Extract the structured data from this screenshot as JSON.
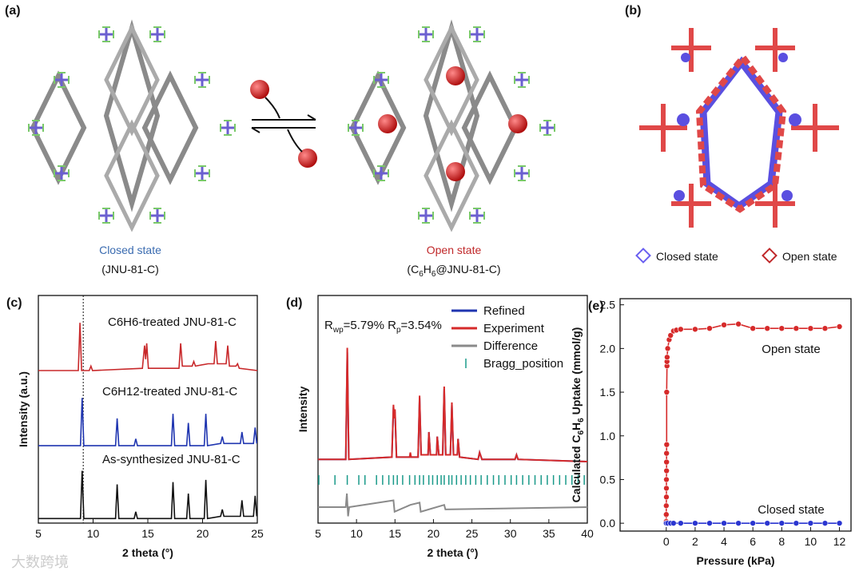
{
  "panel_a": {
    "label": "(a)",
    "closed_state": {
      "name": "Closed state",
      "formula": "(JNU-81-C)"
    },
    "open_state": {
      "name": "Open state",
      "formula_parts": [
        "(C",
        "6",
        "H",
        "6",
        "@JNU-81-C)"
      ]
    }
  },
  "panel_b": {
    "label": "(b)",
    "legend": [
      {
        "name": "Closed state",
        "color": "#6a5ff0"
      },
      {
        "name": "Open state",
        "color": "#c0282a"
      }
    ]
  },
  "chart_data": [
    {
      "panel_label": "(c)",
      "type": "line",
      "xlabel": "2 theta (°)",
      "ylabel": "Intensity (a.u.)",
      "xlim": [
        5,
        25
      ],
      "xticks": [
        5,
        10,
        15,
        20,
        25
      ],
      "ylim": [
        0,
        10
      ],
      "reference_line": 9.1,
      "series": [
        {
          "name": "C6H6-treated JNU-81-C",
          "color": "#c8282a",
          "x": [
            5,
            8.65,
            8.8,
            8.95,
            9.65,
            9.8,
            9.95,
            14.5,
            14.7,
            14.8,
            14.9,
            15.05,
            17.85,
            18.0,
            18.15,
            19.05,
            19.2,
            19.35,
            20.5,
            21.05,
            21.2,
            21.35,
            22.15,
            22.3,
            22.45,
            23.05,
            23.2,
            23.35,
            25
          ],
          "values": [
            6.7,
            6.7,
            8.8,
            6.7,
            6.7,
            6.9,
            6.7,
            6.8,
            7.8,
            7.2,
            7.9,
            6.8,
            6.8,
            7.9,
            6.9,
            6.9,
            7.1,
            6.9,
            7.0,
            7.0,
            8.0,
            7.0,
            7.0,
            7.8,
            6.9,
            6.9,
            7.0,
            6.8,
            6.7
          ]
        },
        {
          "name": "C6H12-treated JNU-81-C",
          "color": "#1f35b0",
          "x": [
            5,
            8.85,
            9.0,
            9.15,
            12.05,
            12.2,
            12.35,
            13.75,
            13.9,
            14.05,
            17.15,
            17.3,
            17.45,
            18.55,
            18.7,
            18.85,
            20.15,
            20.3,
            20.45,
            21.65,
            21.8,
            21.95,
            23.45,
            23.6,
            23.75,
            24.65,
            24.8,
            24.95
          ],
          "values": [
            3.4,
            3.4,
            5.5,
            3.4,
            3.4,
            4.6,
            3.4,
            3.4,
            3.7,
            3.4,
            3.4,
            4.8,
            3.4,
            3.4,
            4.4,
            3.4,
            3.4,
            4.8,
            3.4,
            3.5,
            3.8,
            3.5,
            3.5,
            4.0,
            3.5,
            3.5,
            4.2,
            3.5
          ]
        },
        {
          "name": "As-synthesized JNU-81-C",
          "color": "#111111",
          "x": [
            5,
            8.85,
            9.0,
            9.15,
            12.05,
            12.2,
            12.35,
            13.75,
            13.9,
            14.05,
            17.15,
            17.3,
            17.45,
            18.55,
            18.7,
            18.85,
            20.15,
            20.3,
            20.45,
            21.65,
            21.8,
            21.95,
            23.45,
            23.6,
            23.75,
            24.65,
            24.8,
            24.95
          ],
          "values": [
            0.2,
            0.2,
            2.3,
            0.2,
            0.2,
            1.7,
            0.2,
            0.2,
            0.5,
            0.2,
            0.2,
            1.8,
            0.2,
            0.2,
            1.3,
            0.2,
            0.2,
            1.9,
            0.2,
            0.3,
            0.6,
            0.3,
            0.3,
            1.0,
            0.3,
            0.3,
            1.2,
            0.3
          ]
        }
      ]
    },
    {
      "panel_label": "(d)",
      "type": "line",
      "xlabel": "2 theta (°)",
      "ylabel": "Intensity",
      "annotation_parts": [
        "R",
        "wp",
        "=5.79% R",
        "p",
        "=3.54%"
      ],
      "xlim": [
        5,
        40
      ],
      "xticks": [
        5,
        10,
        15,
        20,
        25,
        30,
        35,
        40
      ],
      "ylim": [
        0,
        10
      ],
      "legend": "upper right",
      "series": [
        {
          "name": "Refined",
          "color": "#1f35b0",
          "x": [
            5,
            8.6,
            8.8,
            9.0,
            14.6,
            14.8,
            14.9,
            15.0,
            15.2,
            16.9,
            17.0,
            17.1,
            18.0,
            18.2,
            18.4,
            19.3,
            19.4,
            19.6,
            20.4,
            20.5,
            20.7,
            21.2,
            21.4,
            21.6,
            22.2,
            22.4,
            22.6,
            23.1,
            23.2,
            23.4,
            25.8,
            26.0,
            26.3,
            30.6,
            30.8,
            31.0,
            40
          ],
          "values": [
            2.8,
            2.8,
            7.5,
            2.8,
            2.9,
            5.1,
            4.6,
            4.9,
            2.9,
            2.9,
            3.0,
            2.9,
            2.9,
            5.5,
            3.0,
            3.0,
            4.0,
            3.0,
            3.0,
            3.8,
            3.0,
            3.0,
            5.9,
            3.0,
            3.0,
            5.2,
            3.0,
            3.0,
            3.7,
            2.9,
            2.8,
            3.1,
            2.8,
            2.8,
            3.0,
            2.8,
            2.7
          ]
        },
        {
          "name": "Experiment",
          "color": "#d62a2a",
          "x": [
            5,
            8.6,
            8.8,
            9.0,
            14.6,
            14.8,
            14.9,
            15.0,
            15.2,
            16.9,
            17.0,
            17.1,
            18.0,
            18.2,
            18.4,
            19.3,
            19.4,
            19.6,
            20.4,
            20.5,
            20.7,
            21.2,
            21.4,
            21.6,
            22.2,
            22.4,
            22.6,
            23.1,
            23.2,
            23.4,
            25.8,
            26.0,
            26.3,
            30.6,
            30.8,
            31.0,
            40
          ],
          "values": [
            2.8,
            2.8,
            7.7,
            2.8,
            2.9,
            5.2,
            4.6,
            5.0,
            2.9,
            2.9,
            3.1,
            2.9,
            2.9,
            5.6,
            3.0,
            3.0,
            4.0,
            3.0,
            3.0,
            3.8,
            3.0,
            3.0,
            6.0,
            3.0,
            3.0,
            5.3,
            3.0,
            3.0,
            3.7,
            2.9,
            2.8,
            3.1,
            2.8,
            2.8,
            3.0,
            2.8,
            2.7
          ]
        },
        {
          "name": "Difference",
          "color": "#8a8a8a",
          "x": [
            5,
            8.6,
            8.75,
            8.9,
            9.05,
            14.8,
            14.95,
            17.0,
            18.2,
            18.35,
            21.4,
            21.55,
            40
          ],
          "values": [
            0.7,
            0.7,
            1.3,
            0.3,
            0.7,
            1.0,
            0.5,
            0.8,
            0.9,
            0.5,
            0.8,
            0.6,
            0.7
          ]
        },
        {
          "name": "Bragg_position",
          "color": "#1a9a8a",
          "x": [
            5.1,
            7.2,
            8.8,
            10.3,
            11.1,
            12.6,
            13.4,
            14.2,
            14.8,
            15.3,
            16.0,
            16.9,
            17.6,
            18.2,
            18.7,
            19.4,
            19.9,
            20.5,
            21.0,
            21.4,
            22.0,
            22.4,
            23.0,
            23.6,
            24.2,
            24.8,
            25.5,
            26.2,
            27.0,
            27.8,
            28.5,
            29.3,
            30.1,
            30.8,
            31.6,
            32.4,
            33.2,
            34.0,
            34.8,
            35.6,
            36.4,
            37.2,
            38.0,
            38.8,
            39.6
          ]
        }
      ]
    },
    {
      "panel_label": "(e)",
      "type": "line",
      "xlabel": "Pressure (kPa)",
      "ylabel_parts": [
        "Calculated C",
        "6",
        "H",
        "6",
        " Uptake (mmol/g)"
      ],
      "xlim": [
        -3.2,
        12.8
      ],
      "xticks": [
        0,
        2,
        4,
        6,
        8,
        10,
        12
      ],
      "ylim": [
        -0.09,
        2.57
      ],
      "yticks": [
        {
          "value": 0,
          "label": "0.0"
        },
        {
          "value": 0.5,
          "label": "0.5"
        },
        {
          "value": 1,
          "label": "1.0"
        },
        {
          "value": 1.5,
          "label": "1.5"
        },
        {
          "value": 2,
          "label": "2.0"
        },
        {
          "value": 2.5,
          "label": "2.5"
        }
      ],
      "series": [
        {
          "name": "Open state",
          "color": "#d62a2a",
          "x": [
            0,
            0,
            0,
            0.01,
            0.01,
            0.01,
            0.02,
            0.02,
            0.02,
            0.03,
            0.03,
            0.05,
            0.05,
            0.06,
            0.1,
            0.2,
            0.3,
            0.5,
            0.7,
            1,
            2,
            3,
            4,
            5,
            6,
            7,
            8,
            9,
            10,
            11,
            12
          ],
          "values": [
            0.02,
            0.1,
            0.2,
            0.3,
            0.4,
            0.5,
            0.6,
            0.7,
            0.8,
            0.9,
            1.5,
            1.8,
            1.85,
            1.9,
            2.0,
            2.1,
            2.15,
            2.2,
            2.21,
            2.22,
            2.22,
            2.23,
            2.27,
            2.28,
            2.23,
            2.23,
            2.23,
            2.23,
            2.23,
            2.23,
            2.25
          ]
        },
        {
          "name": "Closed state",
          "color": "#2a35d0",
          "x": [
            0,
            0.1,
            0.3,
            0.5,
            1,
            2,
            3,
            4,
            5,
            6,
            7,
            8,
            9,
            10,
            11,
            12
          ],
          "values": [
            0,
            0,
            0,
            0,
            0,
            0,
            0,
            0,
            0,
            0,
            0,
            0,
            0,
            0,
            0,
            0
          ]
        }
      ]
    }
  ],
  "watermark": "大数跨境"
}
